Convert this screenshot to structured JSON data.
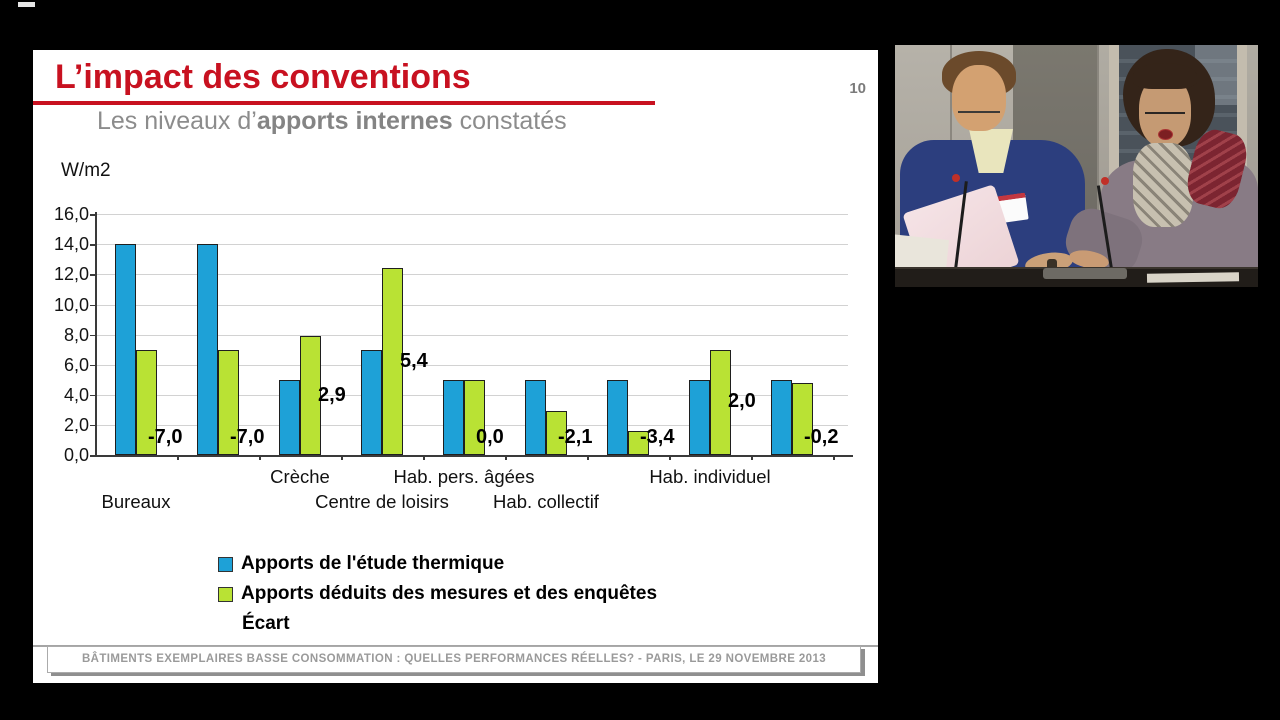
{
  "page": {
    "number": "10"
  },
  "slide": {
    "title": "L’impact des conventions",
    "subtitle_prefix": "Les niveaux d’",
    "subtitle_bold": "apports internes",
    "subtitle_suffix": " constatés",
    "footer": "BÂTIMENTS EXEMPLAIRES BASSE CONSOMMATION : QUELLES PERFORMANCES RÉELLES? - PARIS, LE 29 NOVEMBRE 2013"
  },
  "colors": {
    "accent_red": "#c81120",
    "subtitle_gray": "#8c8c8c",
    "footer_gray": "#9a9a9a",
    "series_blue": "#1ea1d7",
    "series_green": "#b9e234",
    "gridline": "#d2d2d2",
    "axis": "#3a3a3a"
  },
  "chart_data": {
    "type": "bar",
    "title": "Les niveaux d'apports internes constatés",
    "unit_label": "W/m2",
    "ylim": [
      0,
      16
    ],
    "ytick_step": 2,
    "ytick_labels": [
      "16,0",
      "14,0",
      "12,0",
      "10,0",
      "8,0",
      "6,0",
      "4,0",
      "2,0",
      "0,0"
    ],
    "grid": true,
    "legend_position": "bottom-left",
    "categories": [
      "Bureaux",
      "",
      "Crèche",
      "Centre de loisirs",
      "Hab. pers. âgées",
      "Hab. collectif",
      "",
      "Hab. individuel",
      ""
    ],
    "category_label_rows": [
      2,
      0,
      1,
      2,
      1,
      2,
      0,
      1,
      0
    ],
    "series": [
      {
        "name": "Apports de l'étude thermique",
        "color": "#1ea1d7",
        "values": [
          14.0,
          14.0,
          5.0,
          7.0,
          5.0,
          5.0,
          5.0,
          5.0,
          5.0
        ]
      },
      {
        "name": "Apports déduits des mesures et des enquêtes",
        "color": "#b9e234",
        "values": [
          7.0,
          7.0,
          7.9,
          12.4,
          5.0,
          2.9,
          1.6,
          7.0,
          4.8
        ]
      }
    ],
    "ecart": {
      "name": "Écart",
      "values": [
        -7.0,
        -7.0,
        2.9,
        5.4,
        0.0,
        -2.1,
        -3.4,
        2.0,
        -0.2
      ],
      "labels": [
        "-7,0",
        "-7,0",
        "2,9",
        "5,4",
        "0,0",
        "-2,1",
        "-3,4",
        "2,0",
        "-0,2"
      ]
    }
  }
}
